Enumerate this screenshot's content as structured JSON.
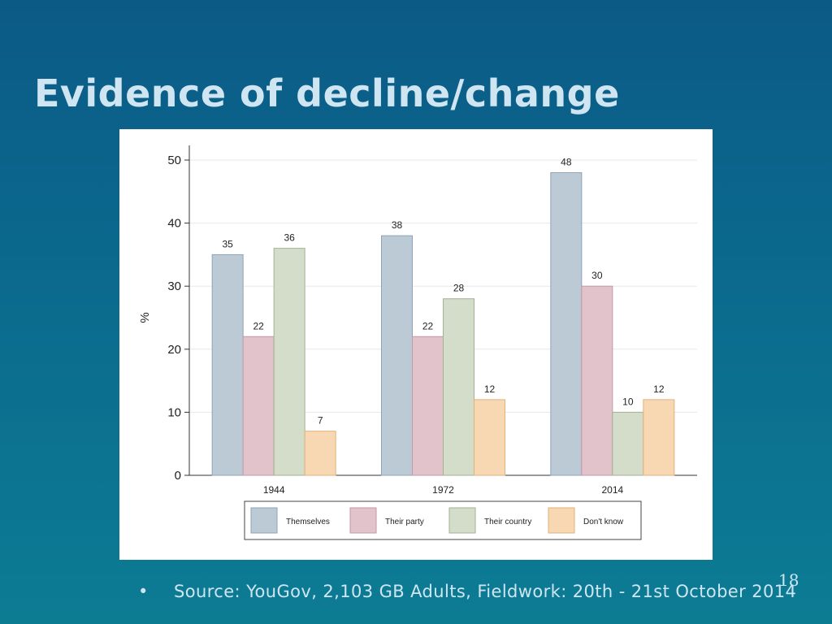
{
  "slide": {
    "title": "Evidence of decline/change",
    "page_number": "18",
    "bullet": "•",
    "source": "Source: YouGov, 2,103 GB Adults, Fieldwork: 20th - 21st October 2014"
  },
  "chart_data": {
    "type": "bar",
    "title": "",
    "xlabel": "",
    "ylabel": "%",
    "ylim": [
      0,
      50
    ],
    "yticks": [
      0,
      10,
      20,
      30,
      40,
      50
    ],
    "grid": true,
    "legend_position": "bottom",
    "categories": [
      "1944",
      "1972",
      "2014"
    ],
    "series": [
      {
        "name": "Themselves",
        "values": [
          35,
          38,
          48
        ],
        "color": "#bccad6",
        "stroke": "#8ea3b5"
      },
      {
        "name": "Their party",
        "values": [
          22,
          22,
          30
        ],
        "color": "#e3c3cb",
        "stroke": "#c09aa4"
      },
      {
        "name": "Their country",
        "values": [
          36,
          28,
          10
        ],
        "color": "#d3ddc9",
        "stroke": "#a3b294"
      },
      {
        "name": "Don't know",
        "values": [
          7,
          12,
          12
        ],
        "color": "#f8d8b2",
        "stroke": "#e0b27c"
      }
    ]
  }
}
